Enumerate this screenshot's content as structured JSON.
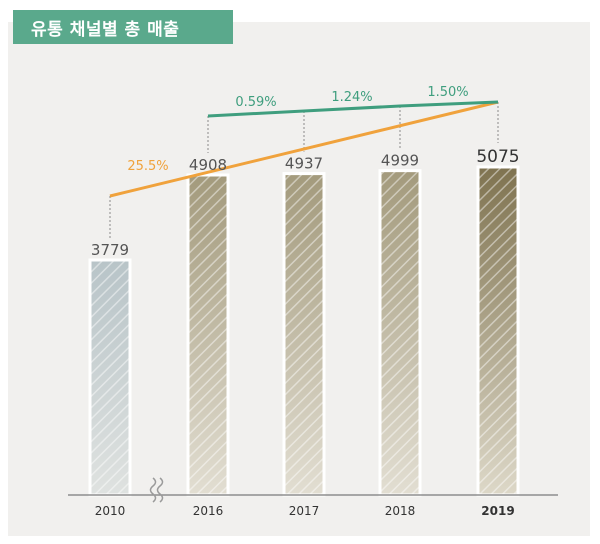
{
  "header": {
    "title": "유통 채널별 총 매출"
  },
  "chart_data": {
    "type": "bar",
    "title": "유통 채널별 총 매출",
    "categories": [
      "2010",
      "2016",
      "2017",
      "2018",
      "2019"
    ],
    "values": [
      3779,
      4908,
      4937,
      4999,
      5075
    ],
    "value_labels": [
      "3779",
      "4908",
      "4937",
      "4999",
      "5075"
    ],
    "ylim": [
      0,
      5500
    ],
    "axis_break": "between 2010 and 2016",
    "growth_lines": [
      {
        "label": "25.5%",
        "color": "#f0a23c"
      },
      {
        "labels": [
          "0.59%",
          "1.24%",
          "1.50%"
        ],
        "color": "#3f9e7e"
      }
    ],
    "colors": {
      "bar_2010": "#b8c4c8",
      "bar_tan": "#a8a085",
      "bar_2019": "#8a7d5c",
      "orange": "#f0a23c",
      "green": "#3f9e7e"
    }
  }
}
